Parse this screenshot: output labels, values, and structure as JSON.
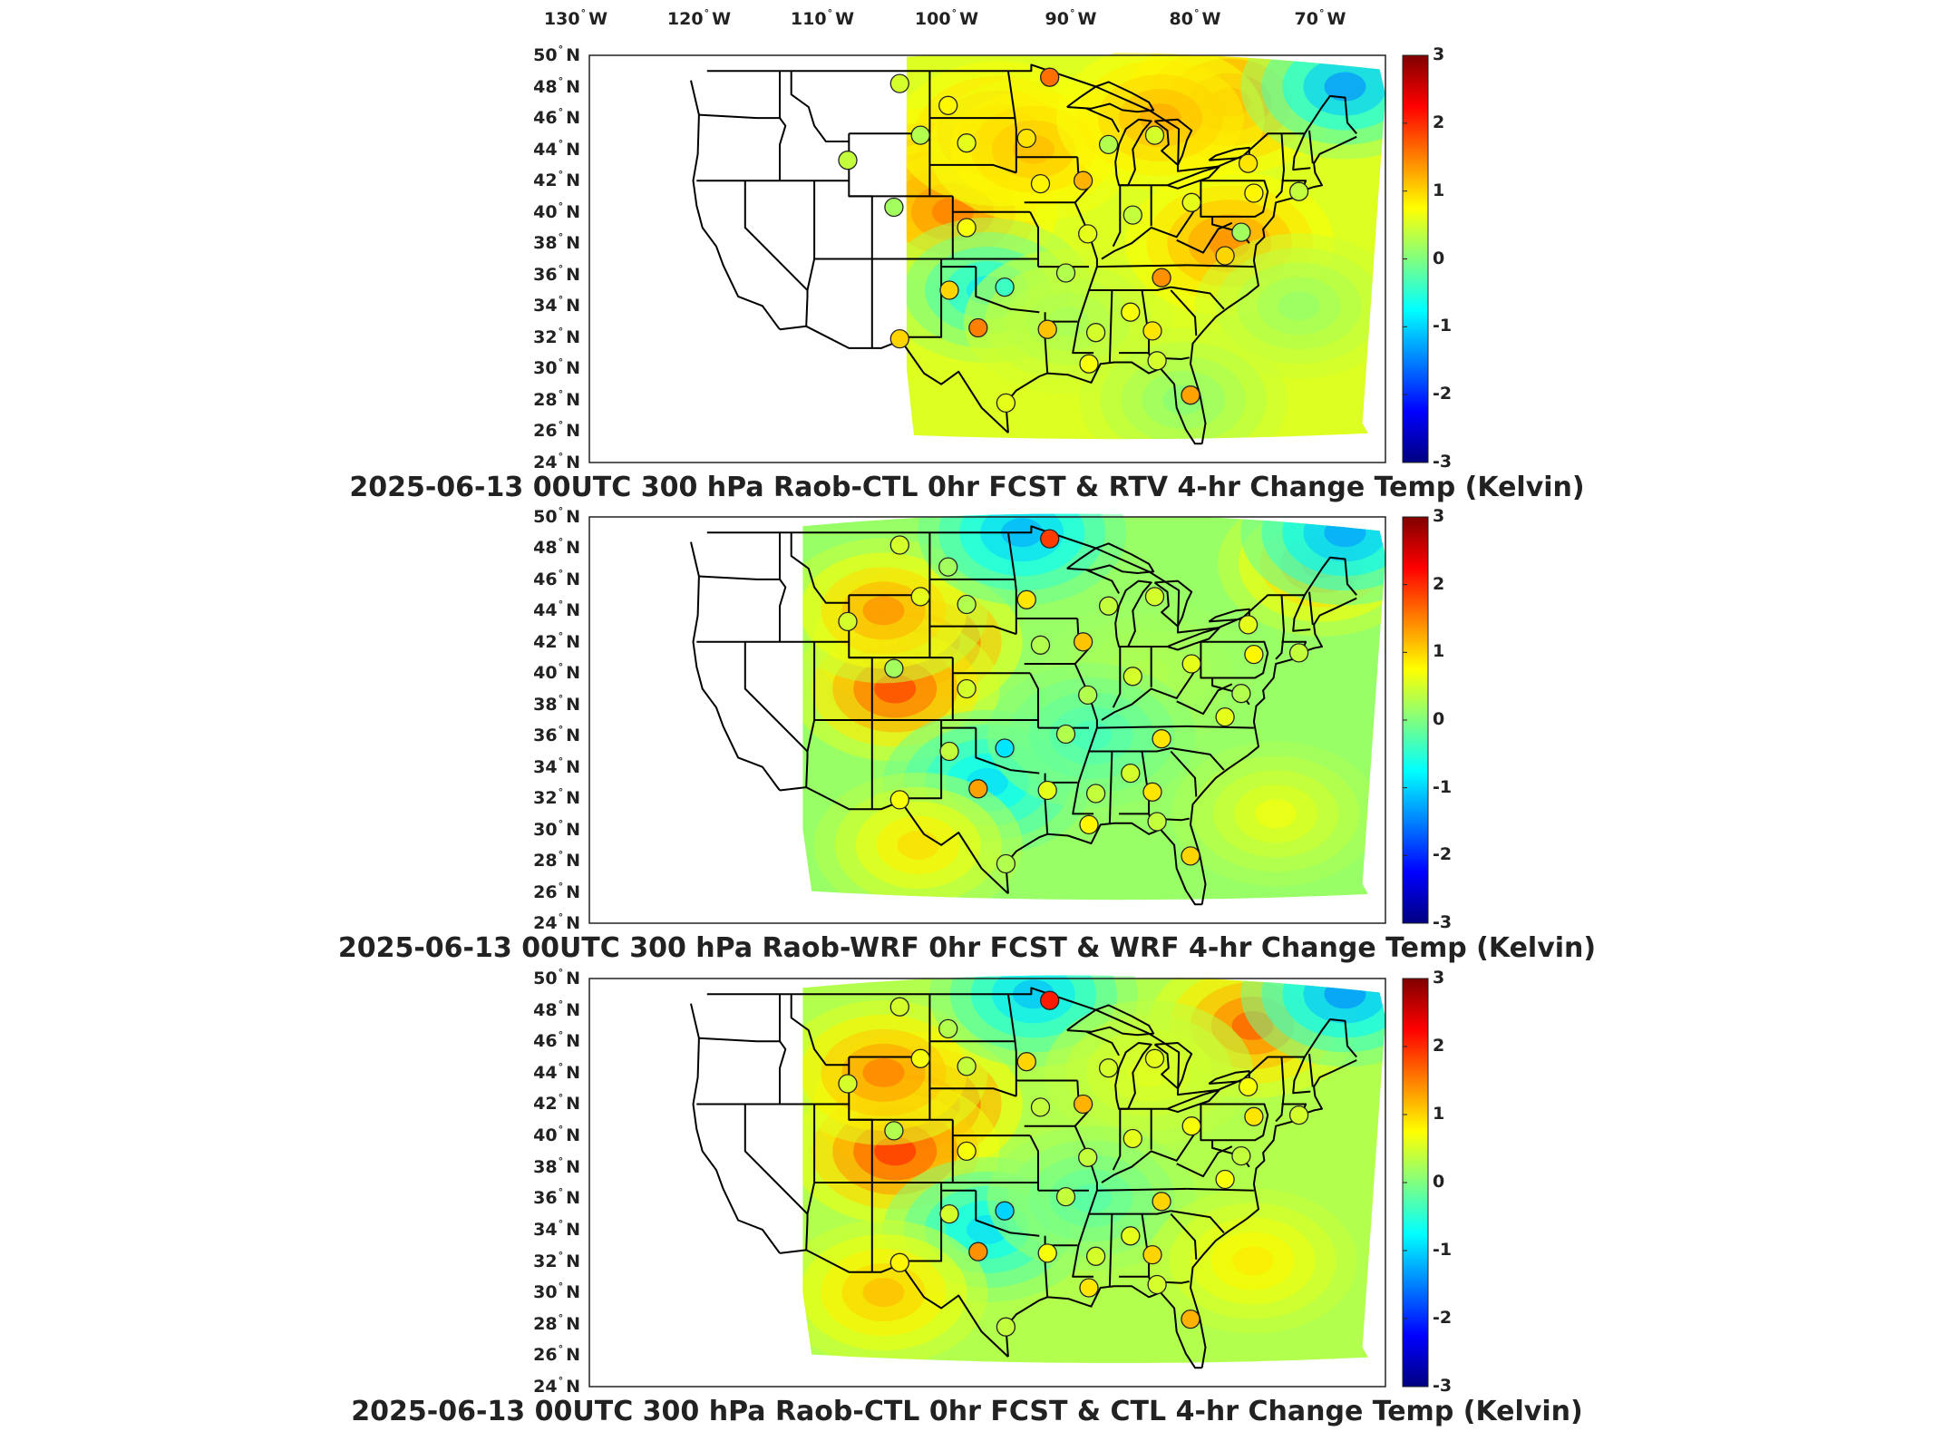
{
  "lon_axis": {
    "unit_suffix": "W",
    "ticks": [
      "130",
      "120",
      "110",
      "100",
      "90",
      "80",
      "70"
    ]
  },
  "lat_axis": {
    "unit_suffix": "N",
    "ticks": [
      "50",
      "48",
      "46",
      "44",
      "42",
      "40",
      "38",
      "36",
      "34",
      "32",
      "30",
      "28",
      "26",
      "24"
    ]
  },
  "colorbar": {
    "colormap": "jet",
    "min": -3,
    "max": 3,
    "ticks": [
      "3",
      "2",
      "1",
      "0",
      "-1",
      "-2",
      "-3"
    ],
    "colors": [
      "#000080",
      "#0000ff",
      "#0080ff",
      "#00ffff",
      "#80ff80",
      "#ffff00",
      "#ff8000",
      "#ff0000",
      "#800000"
    ]
  },
  "panels": [
    {
      "title": "2025-06-13 00UTC 300 hPa Raob-CTL 0hr FCST & RTV 4-hr Change Temp (Kelvin)",
      "field_west_edge_lon": -106,
      "base_value": 0.55,
      "anomalies": [
        {
          "lon": -104,
          "lat": 42,
          "value": 2.0
        },
        {
          "lon": -102,
          "lat": 40,
          "value": 1.6
        },
        {
          "lon": -98,
          "lat": 45,
          "value": 1.4
        },
        {
          "lon": -95,
          "lat": 44,
          "value": 1.2
        },
        {
          "lon": -78,
          "lat": 47,
          "value": 1.7
        },
        {
          "lon": -84,
          "lat": 46,
          "value": 1.3
        },
        {
          "lon": -68,
          "lat": 48,
          "value": -1.5
        },
        {
          "lon": -99,
          "lat": 35,
          "value": -0.9
        },
        {
          "lon": -92,
          "lat": 33,
          "value": 0.2
        },
        {
          "lon": -78,
          "lat": 38,
          "value": 1.5
        },
        {
          "lon": -72,
          "lat": 34,
          "value": 0.1
        },
        {
          "lon": -82,
          "lat": 28,
          "value": 0.0
        }
      ],
      "station_values": [
        0.5,
        0.8,
        0.6,
        1.6,
        0.4,
        0.3,
        0.9,
        1.2,
        0.2,
        0.7,
        -0.4,
        1.0,
        0.8,
        0.3,
        0.5,
        0.6,
        0.4,
        1.4,
        0.9,
        0.7,
        0.5,
        1.1,
        0.3,
        0.6,
        1.0,
        0.2,
        0.8,
        0.4,
        0.9,
        1.3,
        0.5,
        0.7,
        0.6,
        1.5,
        1.0
      ]
    },
    {
      "title": "2025-06-13 00UTC 300 hPa Raob-WRF 0hr FCST & WRF 4-hr Change Temp (Kelvin)",
      "field_west_edge_lon": -115,
      "base_value": 0.15,
      "anomalies": [
        {
          "lon": -105,
          "lat": 42,
          "value": 2.6
        },
        {
          "lon": -107,
          "lat": 39,
          "value": 2.0
        },
        {
          "lon": -108,
          "lat": 44,
          "value": 1.5
        },
        {
          "lon": -96,
          "lat": 49,
          "value": -1.3
        },
        {
          "lon": -99,
          "lat": 33,
          "value": -1.0
        },
        {
          "lon": -70,
          "lat": 47,
          "value": 1.5
        },
        {
          "lon": -68,
          "lat": 49,
          "value": -1.4
        },
        {
          "lon": -85,
          "lat": 40,
          "value": 0.3
        },
        {
          "lon": -90,
          "lat": 36,
          "value": -0.4
        },
        {
          "lon": -105,
          "lat": 29,
          "value": 1.0
        },
        {
          "lon": -74,
          "lat": 31,
          "value": 0.7
        }
      ],
      "station_values": [
        0.5,
        0.2,
        0.3,
        1.9,
        0.5,
        0.6,
        0.9,
        1.1,
        0.2,
        0.5,
        -0.9,
        0.4,
        0.3,
        0.4,
        0.5,
        0.3,
        0.5,
        0.9,
        0.9,
        0.5,
        0.4,
        0.6,
        0.3,
        0.6,
        0.6,
        0.3,
        0.8,
        0.4,
        0.6,
        1.0,
        0.4,
        0.8,
        0.3,
        1.3,
        0.7
      ]
    },
    {
      "title": "2025-06-13 00UTC 300 hPa Raob-CTL 0hr FCST & CTL 4-hr Change Temp (Kelvin)",
      "field_west_edge_lon": -115,
      "base_value": 0.3,
      "anomalies": [
        {
          "lon": -105,
          "lat": 42,
          "value": 2.7
        },
        {
          "lon": -107,
          "lat": 39,
          "value": 2.1
        },
        {
          "lon": -108,
          "lat": 44,
          "value": 1.6
        },
        {
          "lon": -95,
          "lat": 49,
          "value": -1.2
        },
        {
          "lon": -99,
          "lat": 34,
          "value": -1.0
        },
        {
          "lon": -76,
          "lat": 47,
          "value": 1.8
        },
        {
          "lon": -68,
          "lat": 49,
          "value": -1.5
        },
        {
          "lon": -85,
          "lat": 44,
          "value": 0.6
        },
        {
          "lon": -90,
          "lat": 36,
          "value": -0.3
        },
        {
          "lon": -108,
          "lat": 30,
          "value": 1.2
        },
        {
          "lon": -76,
          "lat": 32,
          "value": 0.9
        }
      ],
      "station_values": [
        0.5,
        0.3,
        0.4,
        2.1,
        0.5,
        0.7,
        1.0,
        1.2,
        0.3,
        0.7,
        -1.0,
        0.5,
        0.4,
        0.5,
        0.6,
        0.4,
        0.6,
        1.0,
        1.0,
        0.6,
        0.5,
        0.7,
        0.4,
        0.7,
        0.7,
        0.4,
        0.9,
        0.5,
        0.7,
        1.2,
        0.5,
        0.9,
        0.4,
        1.4,
        0.8
      ]
    }
  ]
}
